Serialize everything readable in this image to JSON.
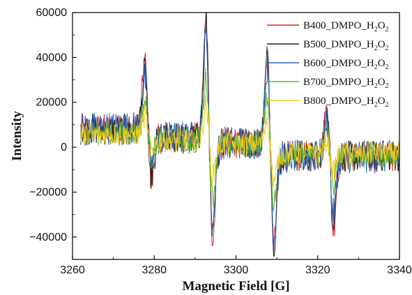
{
  "chart_data": {
    "type": "line",
    "xlabel": "Magnetic Field [G]",
    "ylabel": "Intensity",
    "xlim": [
      3260,
      3340
    ],
    "ylim": [
      -50000,
      60000
    ],
    "x_ticks": [
      3260,
      3280,
      3300,
      3320,
      3340
    ],
    "y_ticks": [
      -40000,
      -20000,
      0,
      20000,
      40000,
      60000
    ],
    "grid": false,
    "legend_position": "top-right",
    "x_start": 3262,
    "x_end": 3340,
    "series": [
      {
        "name": "B400_DMPO_H2O2",
        "label_main": "B400_DMPO_H",
        "label_sub1": "2",
        "label_mid": "O",
        "label_sub2": "2",
        "color": "#d62728",
        "noise": 7000,
        "peaks": [
          {
            "x": 3278.5,
            "amp": 30000,
            "neg_amp": 20000
          },
          {
            "x": 3293.5,
            "amp": 55000,
            "neg_amp": 45000
          },
          {
            "x": 3308.5,
            "amp": 40000,
            "neg_amp": 40000
          },
          {
            "x": 3323.0,
            "amp": 20000,
            "neg_amp": 32000
          }
        ]
      },
      {
        "name": "B500_DMPO_H2O2",
        "label_main": "B500_DMPO_H",
        "label_sub1": "2",
        "label_mid": "O",
        "label_sub2": "2",
        "color": "#222222",
        "noise": 7000,
        "peaks": [
          {
            "x": 3278.5,
            "amp": 26000,
            "neg_amp": 16000
          },
          {
            "x": 3293.5,
            "amp": 52000,
            "neg_amp": 42000
          },
          {
            "x": 3308.5,
            "amp": 38000,
            "neg_amp": 38000
          },
          {
            "x": 3323.0,
            "amp": 18000,
            "neg_amp": 28000
          }
        ]
      },
      {
        "name": "B600_DMPO_H2O2",
        "label_main": "B600_DMPO_H",
        "label_sub1": "2",
        "label_mid": "O",
        "label_sub2": "2",
        "color": "#2a62b5",
        "noise": 7500,
        "peaks": [
          {
            "x": 3278.5,
            "amp": 22000,
            "neg_amp": 14000
          },
          {
            "x": 3293.5,
            "amp": 45000,
            "neg_amp": 38000
          },
          {
            "x": 3308.5,
            "amp": 34000,
            "neg_amp": 36000
          },
          {
            "x": 3323.0,
            "amp": 16000,
            "neg_amp": 26000
          }
        ]
      },
      {
        "name": "B700_DMPO_H2O2",
        "label_main": "B700_DMPO_H",
        "label_sub1": "2",
        "label_mid": "O",
        "label_sub2": "2",
        "color": "#5cb82e",
        "noise": 5500,
        "peaks": [
          {
            "x": 3278.5,
            "amp": 14000,
            "neg_amp": 8000
          },
          {
            "x": 3293.5,
            "amp": 28000,
            "neg_amp": 24000
          },
          {
            "x": 3308.5,
            "amp": 22000,
            "neg_amp": 22000
          },
          {
            "x": 3323.0,
            "amp": 10000,
            "neg_amp": 14000
          }
        ]
      },
      {
        "name": "B800_DMPO_H2O2",
        "label_main": "B800_DMPO_H",
        "label_sub1": "2",
        "label_mid": "O",
        "label_sub2": "2",
        "color": "#f2cc1c",
        "noise": 5000,
        "peaks": [
          {
            "x": 3278.5,
            "amp": 8000,
            "neg_amp": 5000
          },
          {
            "x": 3293.5,
            "amp": 16000,
            "neg_amp": 14000
          },
          {
            "x": 3308.5,
            "amp": 12000,
            "neg_amp": 12000
          },
          {
            "x": 3323.0,
            "amp": 6000,
            "neg_amp": 8000
          }
        ]
      }
    ]
  }
}
